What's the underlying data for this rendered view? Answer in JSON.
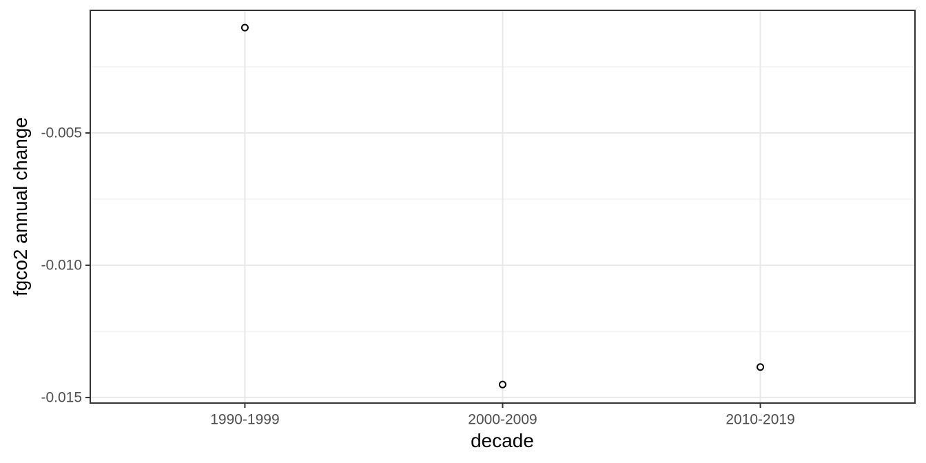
{
  "chart_data": {
    "type": "scatter",
    "title": "",
    "xlabel": "decade",
    "ylabel": "fgco2 annual change",
    "categories": [
      "1990-1999",
      "2000-2009",
      "2010-2019"
    ],
    "values": [
      -0.00102,
      -0.01451,
      -0.01385
    ],
    "yticks": [
      -0.005,
      -0.01,
      -0.015
    ],
    "ytick_labels": [
      "-0.005",
      "-0.010",
      "-0.015"
    ],
    "yminor_ticks": [
      -0.0025,
      -0.0075,
      -0.0125
    ],
    "ylim": [
      -0.01521,
      -0.000365
    ],
    "x_positions": [
      1,
      2,
      3
    ],
    "xlim": [
      0.4,
      3.6
    ],
    "grid": "major+minor",
    "legend": "none",
    "point_style": "open-circle"
  },
  "style": {
    "background_color": "#ffffff",
    "panel_border_color": "#333333",
    "grid_major_color": "#e8e8e8",
    "grid_minor_color": "#f2f2f2",
    "tick_color": "#333333",
    "tick_label_color": "#4d4d4d",
    "axis_title_color": "#000000",
    "point_color": "#000000",
    "point_fill": "#ffffff"
  }
}
